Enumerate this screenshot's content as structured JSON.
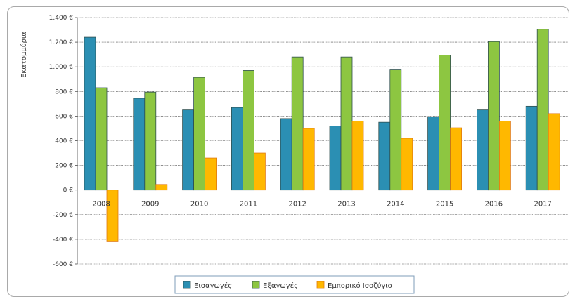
{
  "chart_data": {
    "type": "bar",
    "ylabel": "Εκατομμύρια",
    "xlabel": "",
    "title": "",
    "categories": [
      "2008",
      "2009",
      "2010",
      "2011",
      "2012",
      "2013",
      "2014",
      "2015",
      "2016",
      "2017"
    ],
    "ylim": [
      -600,
      1400
    ],
    "yticks": [
      1400,
      1200,
      1000,
      800,
      600,
      400,
      200,
      0,
      -200,
      -400,
      -600
    ],
    "ytick_labels": [
      "1.400 €",
      "1.200 €",
      "1.000 €",
      "800 €",
      "600 €",
      "400 €",
      "200 €",
      "0 €",
      "-200 €",
      "-400 €",
      "-600 €"
    ],
    "grid": true,
    "legend_position": "bottom",
    "series": [
      {
        "name": "Εισαγωγές",
        "color": "#2b8fb3",
        "values": [
          1240,
          745,
          650,
          670,
          580,
          520,
          550,
          595,
          650,
          680
        ]
      },
      {
        "name": "Εξαγωγές",
        "color": "#8dc641",
        "values": [
          830,
          795,
          915,
          970,
          1080,
          1080,
          975,
          1095,
          1205,
          1305
        ]
      },
      {
        "name": "Εμπορικό Ισοζύγιο",
        "color": "#ffb800",
        "values": [
          -420,
          45,
          260,
          300,
          500,
          560,
          420,
          505,
          560,
          620
        ]
      }
    ]
  }
}
